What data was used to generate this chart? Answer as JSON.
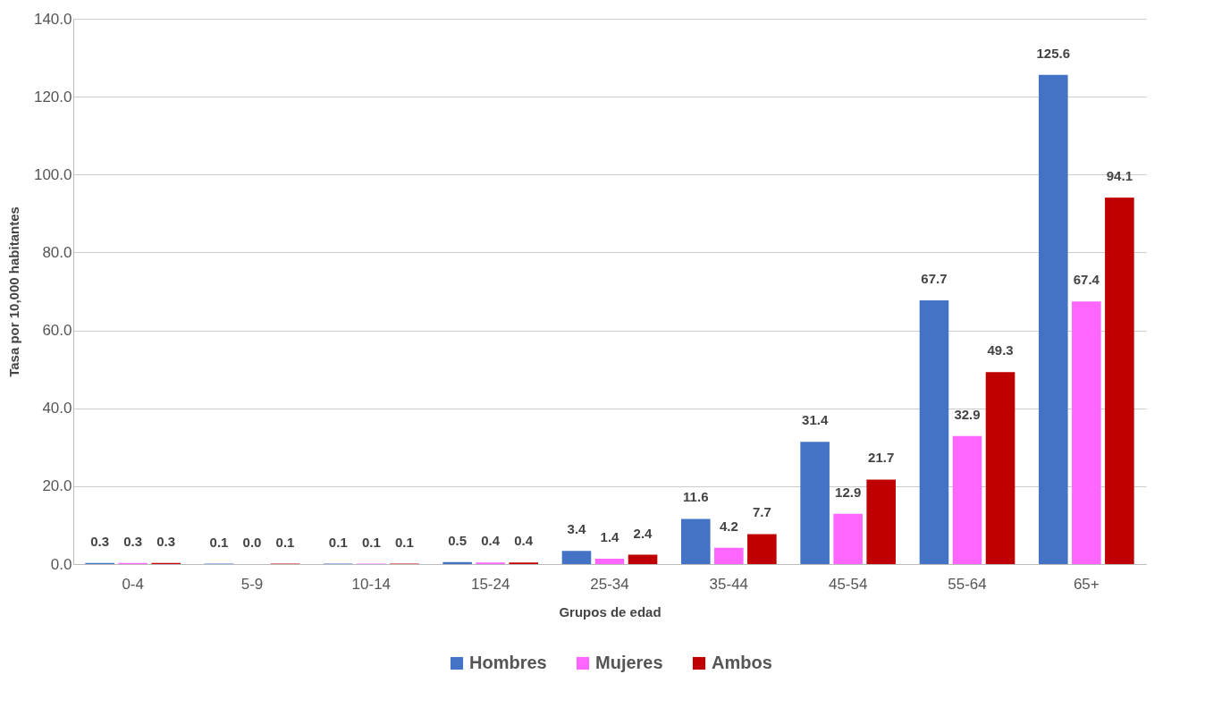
{
  "chart_data": {
    "type": "bar",
    "xlabel": "Grupos de edad",
    "ylabel": "Tasa por 10,000 habitantes",
    "categories": [
      "0-4",
      "5-9",
      "10-14",
      "15-24",
      "25-34",
      "35-44",
      "45-54",
      "55-64",
      "65+"
    ],
    "series": [
      {
        "name": "Hombres",
        "color": "#4472c4",
        "values": [
          0.3,
          0.1,
          0.1,
          0.5,
          3.4,
          11.6,
          31.4,
          67.7,
          125.6
        ],
        "value_labels": [
          "0.3",
          "0.1",
          "0.1",
          "0.5",
          "3.4",
          "11.6",
          "31.4",
          "67.7",
          "125.6"
        ]
      },
      {
        "name": "Mujeres",
        "color": "#ff66ff",
        "values": [
          0.3,
          0.0,
          0.1,
          0.4,
          1.4,
          4.2,
          12.9,
          32.9,
          67.4
        ],
        "value_labels": [
          "0.3",
          "0.0",
          "0.1",
          "0.4",
          "1.4",
          "4.2",
          "12.9",
          "32.9",
          "67.4"
        ]
      },
      {
        "name": "Ambos",
        "color": "#c00000",
        "values": [
          0.3,
          0.1,
          0.1,
          0.4,
          2.4,
          7.7,
          21.7,
          49.3,
          94.1
        ],
        "value_labels": [
          "0.3",
          "0.1",
          "0.1",
          "0.4",
          "2.4",
          "7.7",
          "21.7",
          "49.3",
          "94.1"
        ]
      }
    ],
    "ylim": [
      0,
      140
    ],
    "yticks": [
      {
        "value": 0,
        "label": "0.0"
      },
      {
        "value": 20,
        "label": "20.0"
      },
      {
        "value": 40,
        "label": "40.0"
      },
      {
        "value": 60,
        "label": "60.0"
      },
      {
        "value": 80,
        "label": "80.0"
      },
      {
        "value": 100,
        "label": "100.0"
      },
      {
        "value": 120,
        "label": "120.0"
      },
      {
        "value": 140,
        "label": "140.0"
      }
    ],
    "grid": "y",
    "legend": "bottom"
  }
}
